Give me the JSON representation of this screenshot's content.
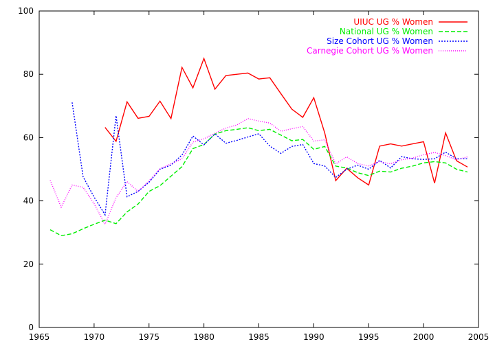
{
  "chart_data": {
    "type": "line",
    "title": "",
    "xlabel": "",
    "ylabel": "",
    "xlim": [
      1965,
      2005
    ],
    "ylim": [
      0,
      100
    ],
    "xticks": [
      1965,
      1970,
      1975,
      1980,
      1985,
      1990,
      1995,
      2000,
      2005
    ],
    "yticks": [
      0,
      20,
      40,
      60,
      80,
      100
    ],
    "grid": false,
    "legend_position": "top-right",
    "series": [
      {
        "name": "UIUC UG % Women",
        "color": "#ff0000",
        "dash": "solid",
        "x": [
          1971,
          1972,
          1973,
          1974,
          1975,
          1976,
          1977,
          1978,
          1979,
          1980,
          1981,
          1982,
          1983,
          1984,
          1985,
          1986,
          1987,
          1988,
          1989,
          1990,
          1991,
          1992,
          1993,
          1994,
          1995,
          1996,
          1997,
          1998,
          1999,
          2000,
          2001,
          2002,
          2003,
          2004
        ],
        "y": [
          63.2,
          58.8,
          71.3,
          66.1,
          66.7,
          71.5,
          66.0,
          82.2,
          75.7,
          85.0,
          75.3,
          79.6,
          80.0,
          80.4,
          78.5,
          78.9,
          73.9,
          69.0,
          66.4,
          72.6,
          61.4,
          46.4,
          50.3,
          47.3,
          45.0,
          57.3,
          58.0,
          57.3,
          58.0,
          58.7,
          45.6,
          61.5,
          52.7,
          50.7
        ]
      },
      {
        "name": "National UG % Women",
        "color": "#00ee00",
        "dash": "dashed",
        "x": [
          1966,
          1967,
          1968,
          1969,
          1970,
          1971,
          1972,
          1973,
          1974,
          1975,
          1976,
          1977,
          1978,
          1979,
          1980,
          1981,
          1982,
          1983,
          1984,
          1985,
          1986,
          1987,
          1988,
          1989,
          1990,
          1991,
          1992,
          1993,
          1994,
          1995,
          1996,
          1997,
          1998,
          1999,
          2000,
          2001,
          2002,
          2003,
          2004
        ],
        "y": [
          30.9,
          29.0,
          29.6,
          31.2,
          32.6,
          33.9,
          32.8,
          36.5,
          39.0,
          43.0,
          44.8,
          47.8,
          50.8,
          56.5,
          57.8,
          61.1,
          62.2,
          62.6,
          63.1,
          62.2,
          62.6,
          60.8,
          59.0,
          59.4,
          56.3,
          57.2,
          51.0,
          50.4,
          48.9,
          48.0,
          49.4,
          49.1,
          50.3,
          51.0,
          52.0,
          52.4,
          52.0,
          50.0,
          49.1
        ]
      },
      {
        "name": "Size Cohort UG % Women",
        "color": "#0000ff",
        "dash": "dotted",
        "x": [
          1968,
          1969,
          1970,
          1971,
          1972,
          1973,
          1974,
          1975,
          1976,
          1977,
          1978,
          1979,
          1980,
          1981,
          1982,
          1983,
          1984,
          1985,
          1986,
          1987,
          1988,
          1989,
          1990,
          1991,
          1992,
          1993,
          1994,
          1995,
          1996,
          1997,
          1998,
          1999,
          2000,
          2001,
          2002,
          2003,
          2004
        ],
        "y": [
          71.1,
          47.6,
          41.2,
          35.6,
          66.9,
          41.3,
          43.0,
          45.9,
          50.0,
          51.3,
          54.5,
          60.5,
          57.7,
          61.2,
          58.2,
          59.1,
          60.2,
          61.2,
          57.3,
          55.0,
          57.2,
          57.8,
          51.8,
          51.0,
          47.4,
          50.0,
          51.3,
          50.0,
          52.8,
          50.4,
          54.0,
          53.3,
          53.1,
          53.3,
          55.4,
          53.3,
          53.3
        ]
      },
      {
        "name": "Carnegie Cohort UG % Women",
        "color": "#ff00ff",
        "dash": "dotted-fine",
        "x": [
          1966,
          1967,
          1968,
          1969,
          1970,
          1971,
          1972,
          1973,
          1974,
          1975,
          1976,
          1977,
          1978,
          1979,
          1980,
          1981,
          1982,
          1983,
          1984,
          1985,
          1986,
          1987,
          1988,
          1989,
          1990,
          1991,
          1992,
          1993,
          1994,
          1995,
          1996,
          1997,
          1998,
          1999,
          2000,
          2001,
          2002,
          2003,
          2004
        ],
        "y": [
          46.5,
          38.0,
          45.0,
          44.3,
          39.1,
          32.6,
          41.0,
          46.1,
          43.0,
          46.3,
          50.2,
          51.7,
          53.3,
          58.6,
          59.6,
          61.4,
          63.0,
          64.0,
          66.0,
          65.2,
          64.6,
          62.0,
          62.8,
          63.5,
          58.9,
          59.3,
          51.7,
          53.9,
          51.8,
          51.0,
          52.4,
          51.7,
          53.0,
          53.5,
          54.6,
          55.3,
          54.3,
          53.0,
          53.9
        ]
      }
    ]
  }
}
